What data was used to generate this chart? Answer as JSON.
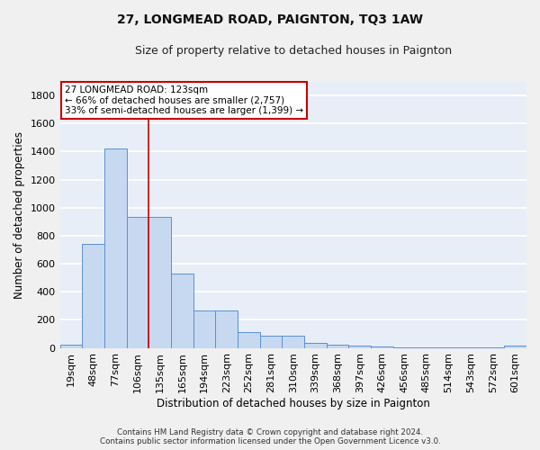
{
  "title": "27, LONGMEAD ROAD, PAIGNTON, TQ3 1AW",
  "subtitle": "Size of property relative to detached houses in Paignton",
  "xlabel": "Distribution of detached houses by size in Paignton",
  "ylabel": "Number of detached properties",
  "categories": [
    "19sqm",
    "48sqm",
    "77sqm",
    "106sqm",
    "135sqm",
    "165sqm",
    "194sqm",
    "223sqm",
    "252sqm",
    "281sqm",
    "310sqm",
    "339sqm",
    "368sqm",
    "397sqm",
    "426sqm",
    "456sqm",
    "485sqm",
    "514sqm",
    "543sqm",
    "572sqm",
    "601sqm"
  ],
  "values": [
    20,
    740,
    1420,
    935,
    935,
    530,
    265,
    265,
    110,
    90,
    90,
    35,
    20,
    15,
    10,
    5,
    5,
    3,
    3,
    3,
    15
  ],
  "bar_color": "#c7d9f0",
  "bar_edge_color": "#5b8fd4",
  "bg_color": "#e8eef7",
  "grid_color": "#ffffff",
  "annotation_box_color": "#ffffff",
  "annotation_box_edge": "#cc0000",
  "vline_color": "#cc0000",
  "vline_x": 3.5,
  "annotation_title": "27 LONGMEAD ROAD: 123sqm",
  "annotation_line1": "← 66% of detached houses are smaller (2,757)",
  "annotation_line2": "33% of semi-detached houses are larger (1,399) →",
  "footer_line1": "Contains HM Land Registry data © Crown copyright and database right 2024.",
  "footer_line2": "Contains public sector information licensed under the Open Government Licence v3.0.",
  "ylim": [
    0,
    1900
  ],
  "yticks": [
    0,
    200,
    400,
    600,
    800,
    1000,
    1200,
    1400,
    1600,
    1800
  ],
  "fig_bg": "#f0f0f0"
}
